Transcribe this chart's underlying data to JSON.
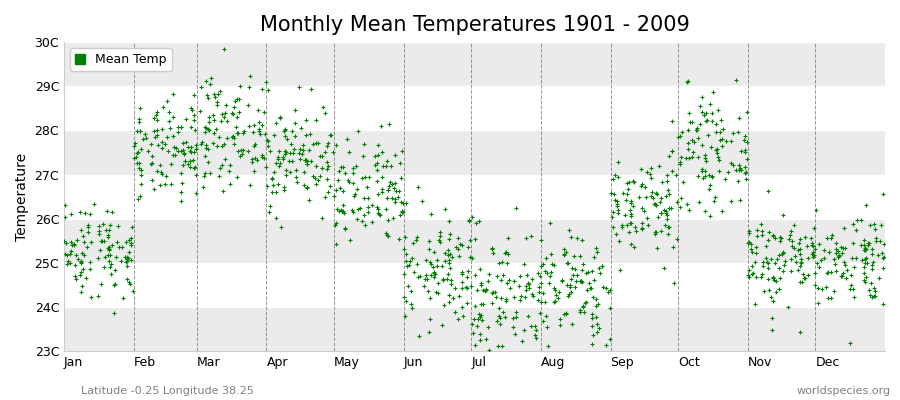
{
  "title": "Monthly Mean Temperatures 1901 - 2009",
  "ylabel": "Temperature",
  "xlabel_subtitle": "Latitude -0.25 Longitude 38.25",
  "watermark": "worldspecies.org",
  "legend_label": "Mean Temp",
  "dot_color": "#008000",
  "dot_size": 6,
  "ylim_min": 23,
  "ylim_max": 30,
  "ytick_labels": [
    "23C",
    "24C",
    "25C",
    "26C",
    "27C",
    "28C",
    "29C",
    "30C"
  ],
  "ytick_values": [
    23,
    24,
    25,
    26,
    27,
    28,
    29,
    30
  ],
  "month_labels": [
    "Jan",
    "Feb",
    "Mar",
    "Apr",
    "May",
    "Jun",
    "Jul",
    "Aug",
    "Sep",
    "Oct",
    "Nov",
    "Dec"
  ],
  "monthly_means": [
    25.3,
    27.5,
    28.0,
    27.4,
    26.5,
    24.8,
    24.3,
    24.4,
    26.3,
    27.5,
    25.1,
    25.1
  ],
  "monthly_stds": [
    0.55,
    0.55,
    0.6,
    0.6,
    0.65,
    0.65,
    0.75,
    0.65,
    0.6,
    0.6,
    0.55,
    0.55
  ],
  "n_years": 109,
  "bg_color": "#ffffff",
  "alt_band_color": "#ebebeb",
  "dashed_line_color": "#555555",
  "title_fontsize": 15,
  "axis_fontsize": 10,
  "tick_fontsize": 9,
  "seed": 42,
  "n_months": 12,
  "total_days": 1308,
  "subtitle_fontsize": 8,
  "watermark_fontsize": 8
}
